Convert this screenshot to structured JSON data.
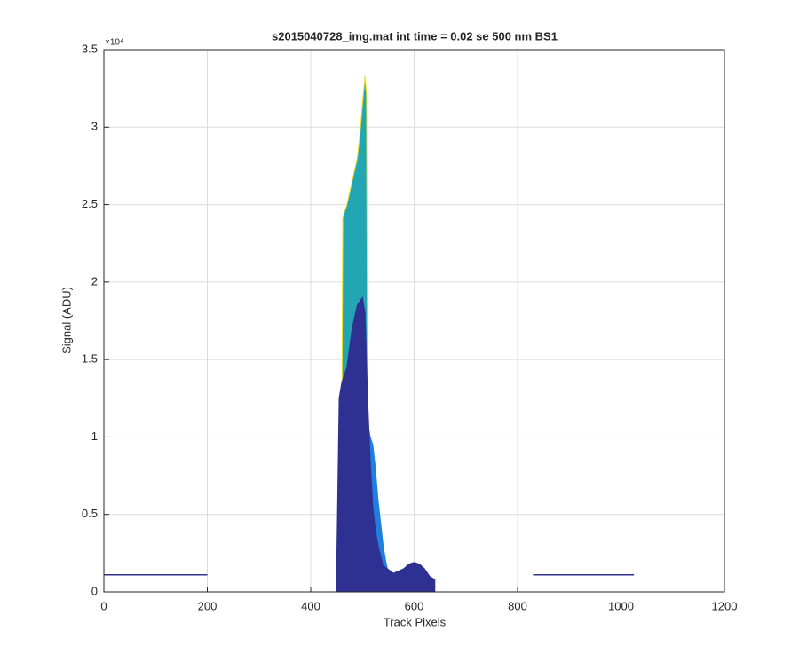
{
  "chart_data": {
    "type": "area",
    "title": "s2015040728_img.mat int time = 0.02 se  500 nm BS1",
    "xlabel": "Track Pixels",
    "ylabel": "Signal (ADU)",
    "y_exponent_label": "×10⁴",
    "xlim": [
      0,
      1200
    ],
    "xticks": [
      0,
      200,
      400,
      600,
      800,
      1000,
      1200
    ],
    "ylim": [
      0,
      3.5
    ],
    "yticks": [
      0,
      0.5,
      1,
      1.5,
      2,
      2.5,
      3,
      3.5
    ],
    "grid": true,
    "series": [
      {
        "color": "#1f7fe0",
        "style": "area",
        "x": [
          505,
          510,
          515,
          520,
          525,
          530,
          535,
          540,
          545,
          550
        ],
        "values": [
          3.3,
          1.1,
          1.0,
          0.95,
          0.8,
          0.6,
          0.45,
          0.3,
          0.2,
          0.12
        ]
      },
      {
        "color": "#22a6b3",
        "edge_color": "#f0e020",
        "style": "area",
        "x": [
          458,
          460,
          462,
          470,
          480,
          490,
          495,
          500,
          505,
          508,
          510
        ],
        "values": [
          0.1,
          1.0,
          2.42,
          2.5,
          2.65,
          2.8,
          2.95,
          3.15,
          3.33,
          3.2,
          1.1
        ]
      },
      {
        "color": "#2e3191",
        "style": "area",
        "x": [
          450,
          455,
          460,
          465,
          470,
          480,
          490,
          500,
          505,
          510,
          515,
          520,
          525,
          530,
          540,
          560,
          580,
          590,
          600,
          610,
          620,
          630,
          640
        ],
        "values": [
          0.1,
          1.25,
          1.35,
          1.4,
          1.45,
          1.7,
          1.85,
          1.9,
          1.8,
          1.25,
          0.85,
          0.55,
          0.4,
          0.3,
          0.17,
          0.12,
          0.15,
          0.18,
          0.19,
          0.18,
          0.15,
          0.1,
          0.08
        ]
      },
      {
        "color": "#2e3191",
        "style": "line",
        "x": [
          0,
          100,
          200
        ],
        "values": [
          0.11,
          0.11,
          0.11
        ]
      },
      {
        "color": "#2e3191",
        "style": "line",
        "x": [
          830,
          930,
          1025
        ],
        "values": [
          0.11,
          0.11,
          0.11
        ]
      }
    ]
  }
}
